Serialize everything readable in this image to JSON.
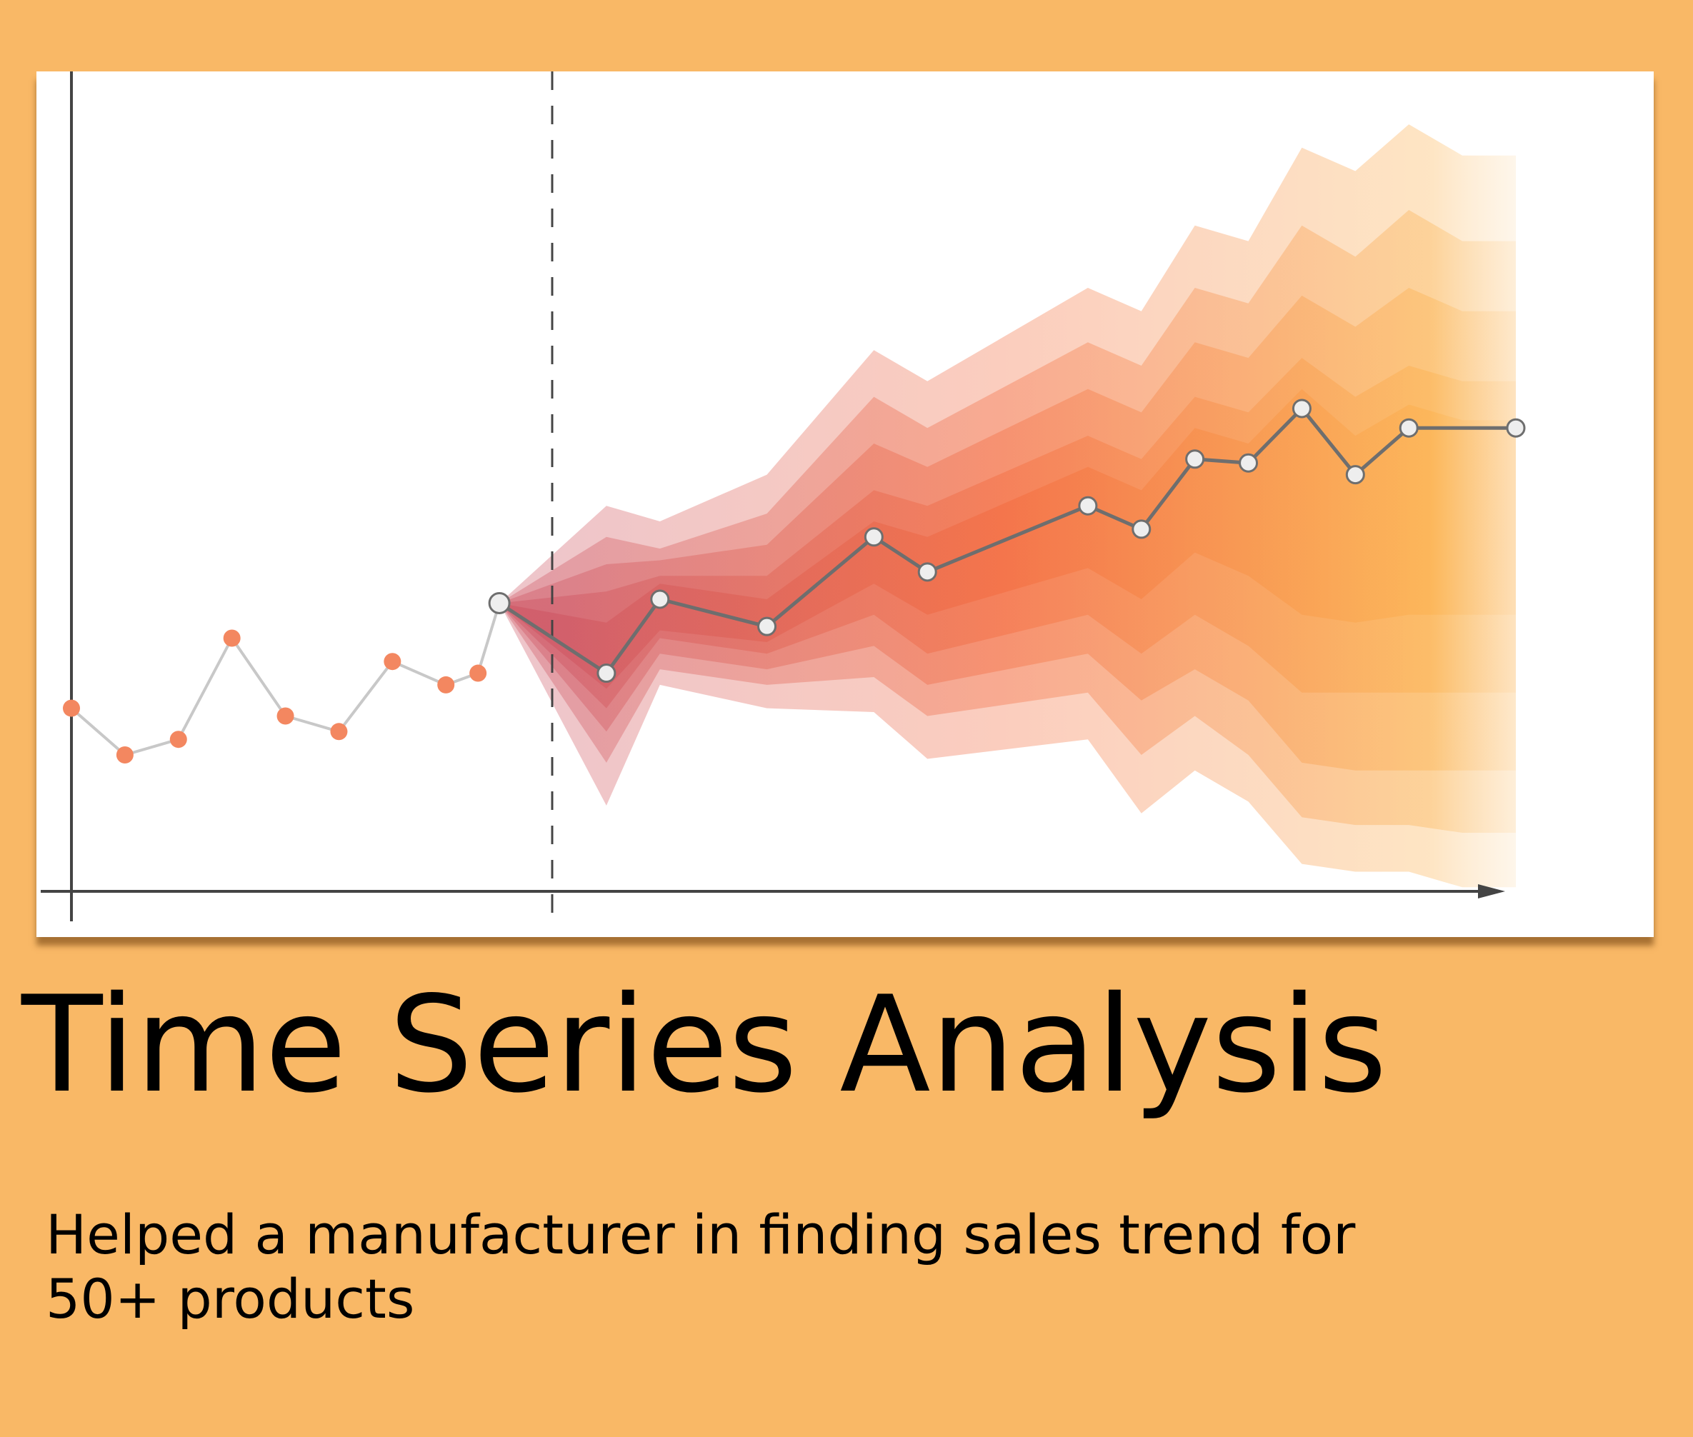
{
  "title": "Time Series Analysis",
  "subtitle_lines": [
    "Helped a manufacturer in finding sales trend for",
    "50+ products"
  ],
  "colors": {
    "background": "#F9B866",
    "history_marker": "#F38760",
    "history_line": "#C8C8C8",
    "forecast_line": "#6E6E6E",
    "forecast_marker_fill": "#EEEEEE",
    "band_start": "#C8404F",
    "band_mid": "#F25A28",
    "band_end": "#FBA93A"
  },
  "chart_data": {
    "type": "line",
    "title": "",
    "xlabel": "",
    "ylabel": "",
    "grid": false,
    "axis_ticks": false,
    "xlim": [
      0,
      27
    ],
    "ylim": [
      0,
      100
    ],
    "forecast_origin_x": 8,
    "series": [
      {
        "role": "history",
        "x": [
          0,
          1,
          2,
          3,
          4,
          5,
          6,
          7,
          7.6,
          8
        ],
        "y": [
          26,
          20,
          22,
          35,
          25,
          23,
          32,
          29,
          30.5,
          39.5
        ]
      },
      {
        "role": "forecast",
        "x": [
          8,
          10,
          11,
          13,
          15,
          16,
          19,
          20,
          21,
          22,
          23,
          24,
          25,
          27
        ],
        "y": [
          39.5,
          30.5,
          40,
          36.5,
          48,
          43.5,
          52,
          49,
          58,
          57.5,
          64.5,
          56,
          62,
          62
        ]
      }
    ],
    "bands": [
      {
        "x": [
          8,
          10,
          11,
          13,
          15,
          16,
          19,
          20,
          21,
          22,
          23,
          24,
          25,
          26,
          27
        ],
        "lower": [
          39.5,
          13.5,
          29,
          26,
          25.5,
          19.5,
          22,
          12.5,
          18,
          14,
          6,
          5,
          5,
          3,
          3
        ],
        "upper": [
          39.5,
          52,
          50,
          56,
          72,
          68,
          80,
          77,
          88,
          86,
          98,
          95,
          101,
          97,
          97
        ]
      },
      {
        "x": [
          8,
          10,
          11,
          13,
          15,
          16,
          19,
          20,
          21,
          22,
          23,
          24,
          25,
          26,
          27
        ],
        "lower": [
          39.5,
          19,
          31,
          29,
          30,
          25,
          28,
          20,
          25,
          20,
          12,
          11,
          11,
          10,
          10
        ],
        "upper": [
          39.5,
          48,
          46.5,
          51,
          66,
          62,
          73,
          70,
          80,
          78,
          88,
          84,
          90,
          86,
          86
        ]
      },
      {
        "x": [
          8,
          10,
          11,
          13,
          15,
          16,
          19,
          20,
          21,
          22,
          23,
          24,
          25,
          26,
          27
        ],
        "lower": [
          39.5,
          23,
          33,
          31,
          34,
          29,
          33,
          27,
          31,
          27,
          19,
          18,
          18,
          18,
          18
        ],
        "upper": [
          39.5,
          44.5,
          45,
          47,
          60,
          57,
          67,
          64,
          73,
          71,
          79,
          75,
          80,
          77,
          77
        ]
      },
      {
        "x": [
          8,
          10,
          11,
          13,
          15,
          16,
          19,
          20,
          21,
          22,
          23,
          24,
          25,
          26,
          27
        ],
        "lower": [
          39.5,
          26,
          35,
          33,
          38,
          33,
          38,
          33,
          38,
          34,
          28,
          28,
          28,
          28,
          28
        ],
        "upper": [
          39.5,
          41,
          43,
          43,
          54,
          52,
          61,
          58,
          66,
          64,
          71,
          66,
          70,
          68,
          68
        ]
      },
      {
        "x": [
          8,
          10,
          11,
          13,
          15,
          16,
          19,
          20,
          21,
          22,
          23,
          24,
          25,
          26,
          27
        ],
        "lower": [
          39.5,
          28.5,
          36,
          34.5,
          42,
          38,
          44,
          40,
          46,
          43,
          38,
          37,
          38,
          38,
          38
        ],
        "upper": [
          39.5,
          37,
          42,
          40,
          50,
          48,
          57,
          54,
          62,
          60,
          67,
          61,
          65,
          63,
          63
        ]
      }
    ]
  }
}
